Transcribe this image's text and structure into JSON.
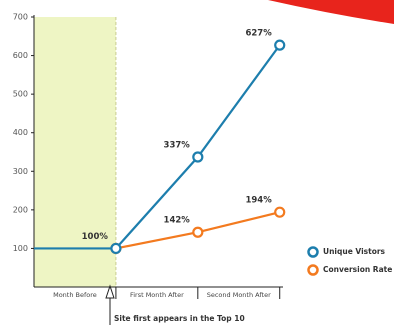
{
  "chart_data": {
    "type": "line",
    "categories": [
      "Month Before",
      "First Month After",
      "Second Month After"
    ],
    "x": [
      0,
      1,
      2,
      3
    ],
    "xlim": [
      0,
      3.04
    ],
    "xticks": [
      1,
      2,
      3
    ],
    "ylim": [
      0,
      700
    ],
    "yticks": [
      100,
      200,
      300,
      400,
      500,
      600,
      700
    ],
    "series": [
      {
        "name": "Conversion Rate",
        "color": "#f37a1f",
        "values": [
          null,
          100,
          142,
          194
        ],
        "value_labels": [
          null,
          null,
          "142%",
          "194%"
        ]
      },
      {
        "name": "Unique Vistors",
        "color": "#1d7ead",
        "values": [
          100,
          100,
          337,
          627
        ],
        "value_labels": [
          null,
          "100%",
          "337%",
          "627%"
        ]
      }
    ],
    "annotation": "Site first appears in the Top 10"
  }
}
